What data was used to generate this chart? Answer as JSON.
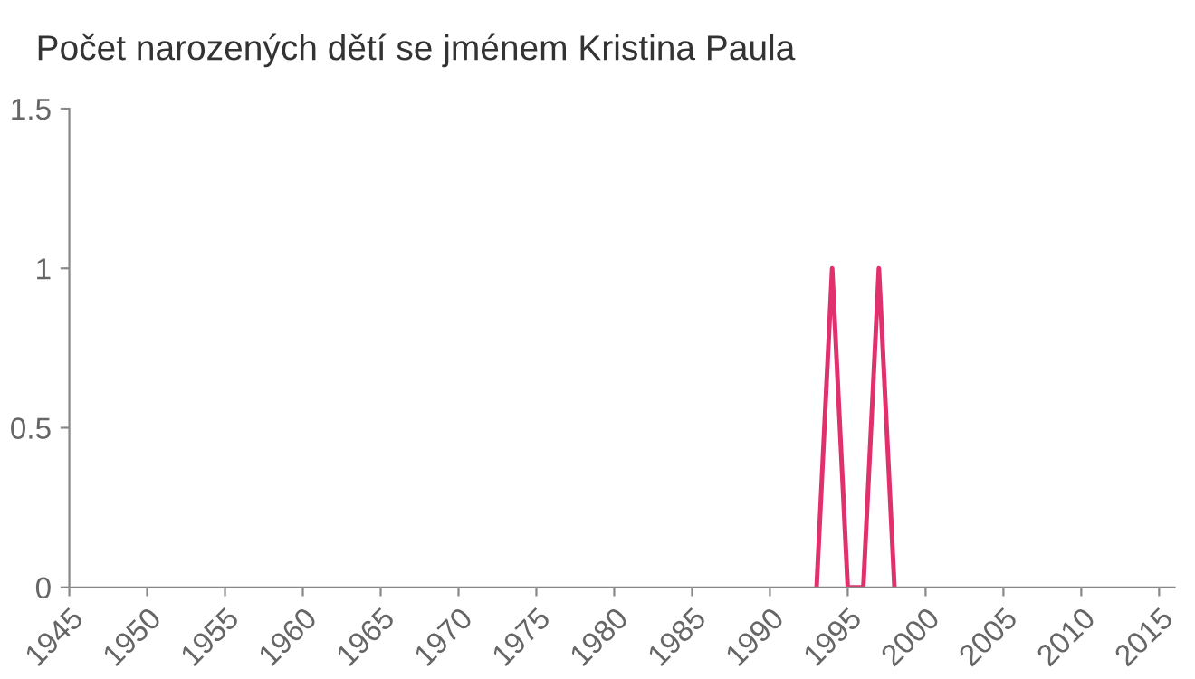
{
  "chart_data": {
    "type": "line",
    "title": "Počet narozených dětí se jménem Kristina Paula",
    "series": [
      {
        "color": "#e0306e",
        "x": [
          1993,
          1994,
          1995,
          1996,
          1997,
          1998
        ],
        "values": [
          0,
          1,
          0,
          0,
          1,
          0
        ]
      }
    ],
    "xlim": [
      1945,
      2016
    ],
    "xticks": [
      1945,
      1950,
      1955,
      1960,
      1965,
      1970,
      1975,
      1980,
      1985,
      1990,
      1995,
      2000,
      2005,
      2010,
      2015
    ],
    "ylim": [
      0,
      1.5
    ],
    "yticks": [
      0,
      0.5,
      1,
      1.5
    ],
    "grid": false,
    "legend": false,
    "marker": "none",
    "line_style": "solid"
  }
}
